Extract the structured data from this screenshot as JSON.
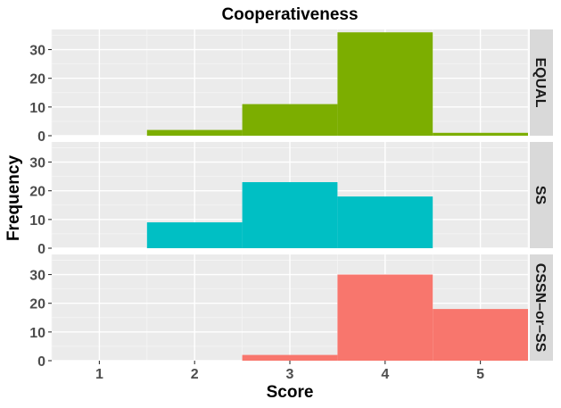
{
  "chart_data": {
    "type": "bar",
    "title": "Cooperativeness",
    "xlabel": "Score",
    "ylabel": "Frequency",
    "xlim": [
      0.5,
      5.5
    ],
    "ylim": [
      0,
      37
    ],
    "x_ticks": [
      1,
      2,
      3,
      4,
      5
    ],
    "y_ticks": [
      0,
      10,
      20,
      30
    ],
    "bin_width": 1,
    "grid": true,
    "legend": "none",
    "facets": [
      {
        "label": "EQUAL",
        "color": "#7CAE00",
        "bins": [
          {
            "x": 2,
            "count": 2
          },
          {
            "x": 3,
            "count": 11
          },
          {
            "x": 4,
            "count": 36
          },
          {
            "x": 5,
            "count": 1
          }
        ]
      },
      {
        "label": "SS",
        "color": "#00BFC4",
        "bins": [
          {
            "x": 2,
            "count": 9
          },
          {
            "x": 3,
            "count": 23
          },
          {
            "x": 4,
            "count": 18
          }
        ]
      },
      {
        "label": "CSSN–or–SS",
        "color": "#F8766D",
        "bins": [
          {
            "x": 3,
            "count": 2
          },
          {
            "x": 4,
            "count": 30
          },
          {
            "x": 5,
            "count": 18
          }
        ]
      }
    ]
  }
}
